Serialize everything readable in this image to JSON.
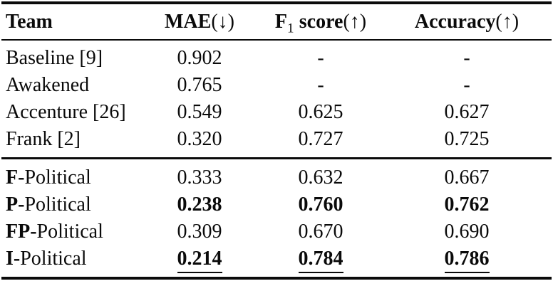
{
  "colors": {
    "text": "#0a0a0a",
    "background": "#ffffff",
    "rule": "#0a0a0a"
  },
  "headers": {
    "team": "Team",
    "mae_label": "MAE",
    "mae_arrow": "(↓)",
    "f1_letter": "F",
    "f1_sub": "1",
    "f1_score": "score",
    "f1_arrow": "(↑)",
    "accuracy_label": "Accuracy",
    "accuracy_arrow": "(↑)"
  },
  "rows": [
    {
      "team_prefix": "",
      "team_rest": "Baseline [9]",
      "mae": "0.902",
      "f1": "-",
      "accuracy": "-",
      "emphasis": "none"
    },
    {
      "team_prefix": "",
      "team_rest": "Awakened",
      "mae": "0.765",
      "f1": "-",
      "accuracy": "-",
      "emphasis": "none"
    },
    {
      "team_prefix": "",
      "team_rest": "Accenture [26]",
      "mae": "0.549",
      "f1": "0.625",
      "accuracy": "0.627",
      "emphasis": "none"
    },
    {
      "team_prefix": "",
      "team_rest": "Frank [2]",
      "mae": "0.320",
      "f1": "0.727",
      "accuracy": "0.725",
      "emphasis": "none"
    },
    {
      "team_prefix": "F-",
      "team_rest": "Political",
      "mae": "0.333",
      "f1": "0.632",
      "accuracy": "0.667",
      "emphasis": "none"
    },
    {
      "team_prefix": "P-",
      "team_rest": "Political",
      "mae": "0.238",
      "f1": "0.760",
      "accuracy": "0.762",
      "emphasis": "bold"
    },
    {
      "team_prefix": "FP-",
      "team_rest": "Political",
      "mae": "0.309",
      "f1": "0.670",
      "accuracy": "0.690",
      "emphasis": "none"
    },
    {
      "team_prefix": "I-",
      "team_rest": "Political",
      "mae": "0.214",
      "f1": "0.784",
      "accuracy": "0.786",
      "emphasis": "bold-underline"
    }
  ]
}
